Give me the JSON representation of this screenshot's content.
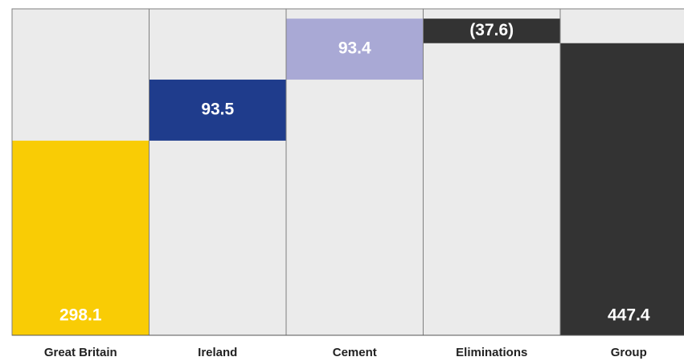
{
  "chart_data": {
    "type": "waterfall",
    "categories": [
      "Great Britain",
      "Ireland",
      "Cement",
      "Eliminations",
      "Group"
    ],
    "values": [
      298.1,
      93.5,
      93.4,
      -37.6,
      447.4
    ],
    "value_labels": [
      "298.1",
      "93.5",
      "93.4",
      "(37.6)",
      "447.4"
    ],
    "colors": [
      "#f9cc05",
      "#1f3c8c",
      "#a9a9d5",
      "#333333",
      "#333333"
    ],
    "last_is_total": true,
    "ylim": [
      0,
      500
    ]
  }
}
